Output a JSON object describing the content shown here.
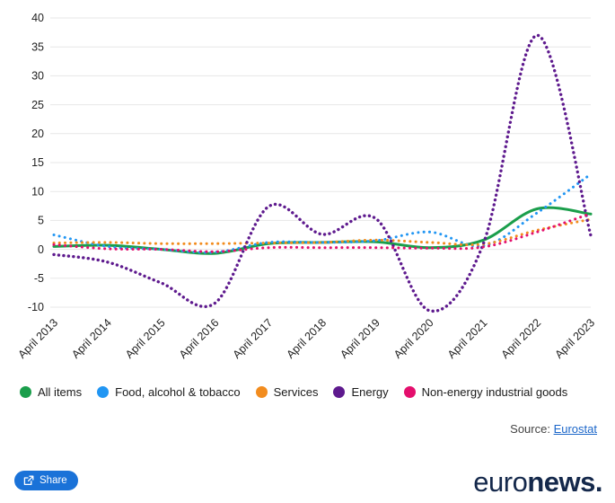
{
  "chart_data": {
    "type": "line",
    "title": "",
    "xlabel": "",
    "ylabel": "",
    "x_categories": [
      "April 2013",
      "April 2014",
      "April 2015",
      "April 2016",
      "April 2017",
      "April 2018",
      "April 2019",
      "April 2020",
      "April 2021",
      "April 2022",
      "April 2023"
    ],
    "ylim": [
      -10,
      40
    ],
    "yticks": [
      40,
      35,
      30,
      25,
      20,
      15,
      10,
      5,
      0,
      -5,
      -10
    ],
    "grid": "horizontal",
    "legend_position": "bottom",
    "series": [
      {
        "name": "All items",
        "color": "#1a9e4b",
        "style": "solid",
        "values": [
          0.5,
          0.7,
          0.0,
          -0.7,
          1.0,
          1.2,
          1.3,
          0.3,
          1.6,
          7.0,
          6.1
        ]
      },
      {
        "name": "Food, alcohol & tobacco",
        "color": "#2196f3",
        "style": "dotted",
        "values": [
          2.5,
          0.5,
          0.0,
          -0.5,
          1.2,
          1.2,
          1.5,
          3.0,
          0.6,
          6.3,
          13.0
        ]
      },
      {
        "name": "Services",
        "color": "#f28c1e",
        "style": "dotted",
        "values": [
          1.1,
          1.2,
          1.0,
          1.0,
          1.1,
          1.2,
          1.6,
          1.2,
          0.9,
          3.3,
          5.2
        ]
      },
      {
        "name": "Energy",
        "color": "#5e1a8e",
        "style": "dotted",
        "values": [
          -0.9,
          -2.2,
          -5.8,
          -9.3,
          7.4,
          2.6,
          5.3,
          -10.6,
          1.0,
          37.0,
          2.4
        ]
      },
      {
        "name": "Non-energy industrial goods",
        "color": "#e40f6d",
        "style": "dotted",
        "values": [
          0.8,
          0.1,
          0.0,
          -0.4,
          0.3,
          0.3,
          0.3,
          0.2,
          0.4,
          3.0,
          6.2
        ]
      }
    ]
  },
  "source": {
    "prefix": "Source: ",
    "link_label": "Eurostat"
  },
  "share": {
    "label": "Share"
  },
  "logo": {
    "part1": "euro",
    "part2": "news",
    "dot": "."
  }
}
